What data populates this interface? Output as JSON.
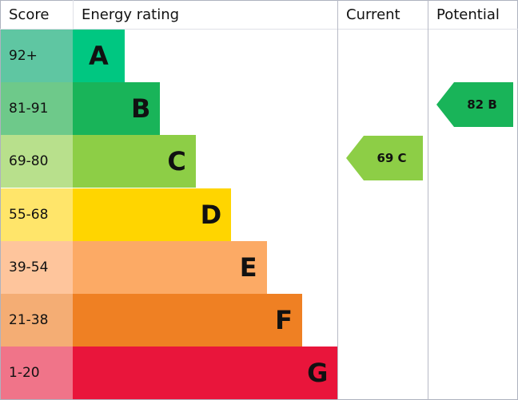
{
  "header": {
    "score": "Score",
    "energy_rating": "Energy rating",
    "current": "Current",
    "potential": "Potential"
  },
  "chart_data": {
    "type": "bar",
    "categories": [
      "A",
      "B",
      "C",
      "D",
      "E",
      "F",
      "G"
    ],
    "bands": [
      {
        "letter": "A",
        "score": "92+",
        "color": "#00c781",
        "score_bg": "#5fc6a2"
      },
      {
        "letter": "B",
        "score": "81-91",
        "color": "#19b459",
        "score_bg": "#6ec98a"
      },
      {
        "letter": "C",
        "score": "69-80",
        "color": "#8dce46",
        "score_bg": "#b8e08c"
      },
      {
        "letter": "D",
        "score": "55-68",
        "color": "#ffd500",
        "score_bg": "#ffe56a"
      },
      {
        "letter": "E",
        "score": "39-54",
        "color": "#fcaa65",
        "score_bg": "#fec59c"
      },
      {
        "letter": "F",
        "score": "21-38",
        "color": "#ef8023",
        "score_bg": "#f4ad74"
      },
      {
        "letter": "G",
        "score": "1-20",
        "color": "#e9153b",
        "score_bg": "#f07489"
      }
    ],
    "current": {
      "label": "69 C",
      "value": 69,
      "band": "C",
      "color": "#8dce46"
    },
    "potential": {
      "label": "82 B",
      "value": 82,
      "band": "B",
      "color": "#19b459"
    }
  }
}
